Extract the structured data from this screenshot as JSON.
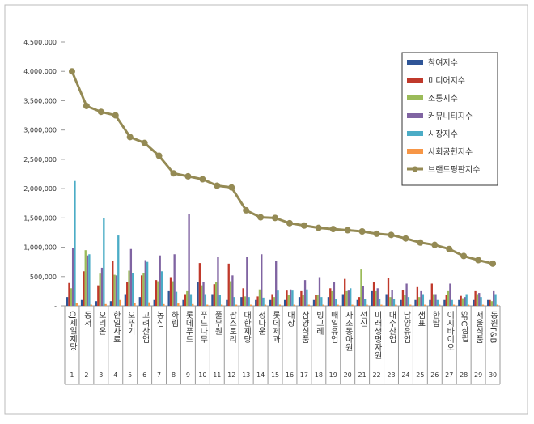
{
  "chart_data": {
    "type": "bar_line",
    "categories": [
      "CJ제일제당",
      "동서",
      "오리온",
      "한일사료",
      "오뚜기",
      "고려산업",
      "농심",
      "하림",
      "롯데푸드",
      "푸드나무",
      "풀무원",
      "팜스토리",
      "대한제당",
      "정다운",
      "롯데제과",
      "대상",
      "삼양식품",
      "빙그레",
      "매일유업",
      "사조동아원",
      "선진",
      "미래생명자원",
      "대주산업",
      "남양유업",
      "샘표",
      "한탑",
      "이지바이오",
      "SPC삼립",
      "서울식품",
      "동원F&B"
    ],
    "category_numbers": [
      1,
      2,
      3,
      4,
      5,
      6,
      7,
      8,
      9,
      10,
      11,
      12,
      13,
      14,
      15,
      16,
      17,
      18,
      19,
      20,
      21,
      22,
      23,
      24,
      25,
      26,
      27,
      28,
      29,
      30
    ],
    "ylim": [
      0,
      4500000
    ],
    "yticks": [
      {
        "value": 0,
        "label": "-"
      },
      {
        "value": 500000,
        "label": "500,000"
      },
      {
        "value": 1000000,
        "label": "1,000,000"
      },
      {
        "value": 1500000,
        "label": "1,500,000"
      },
      {
        "value": 2000000,
        "label": "2,000,000"
      },
      {
        "value": 2500000,
        "label": "2,500,000"
      },
      {
        "value": 3000000,
        "label": "3,000,000"
      },
      {
        "value": 3500000,
        "label": "3,500,000"
      },
      {
        "value": 4000000,
        "label": "4,000,000"
      },
      {
        "value": 4500000,
        "label": "4,500,000"
      }
    ],
    "legend": "upper right",
    "series": [
      {
        "name": "참여지수",
        "kind": "bar",
        "color": "#2f5597",
        "values": [
          150000,
          100000,
          80000,
          80000,
          200000,
          150000,
          100000,
          250000,
          100000,
          400000,
          200000,
          100000,
          150000,
          100000,
          100000,
          100000,
          150000,
          100000,
          150000,
          200000,
          100000,
          250000,
          200000,
          100000,
          100000,
          100000,
          100000,
          100000,
          100000,
          100000
        ]
      },
      {
        "name": "미디어지수",
        "kind": "bar",
        "color": "#c0392b",
        "values": [
          390000,
          590000,
          350000,
          770000,
          400000,
          520000,
          440000,
          490000,
          200000,
          730000,
          370000,
          720000,
          300000,
          160000,
          200000,
          260000,
          250000,
          180000,
          300000,
          460000,
          150000,
          400000,
          480000,
          270000,
          320000,
          380000,
          180000,
          170000,
          250000,
          100000
        ]
      },
      {
        "name": "소통지수",
        "kind": "bar",
        "color": "#9bbb59",
        "values": [
          300000,
          950000,
          550000,
          530000,
          600000,
          560000,
          420000,
          420000,
          250000,
          350000,
          400000,
          420000,
          160000,
          280000,
          150000,
          180000,
          190000,
          190000,
          250000,
          250000,
          620000,
          250000,
          150000,
          190000,
          150000,
          200000,
          250000,
          130000,
          200000,
          80000
        ]
      },
      {
        "name": "커뮤니티지수",
        "kind": "bar",
        "color": "#8064a2",
        "values": [
          990000,
          860000,
          650000,
          520000,
          970000,
          780000,
          860000,
          880000,
          1560000,
          410000,
          840000,
          520000,
          840000,
          880000,
          770000,
          280000,
          440000,
          490000,
          400000,
          260000,
          340000,
          300000,
          270000,
          380000,
          250000,
          200000,
          380000,
          150000,
          220000,
          250000
        ]
      },
      {
        "name": "시장지수",
        "kind": "bar",
        "color": "#4bacc6",
        "values": [
          2130000,
          880000,
          1500000,
          1200000,
          560000,
          750000,
          590000,
          240000,
          200000,
          200000,
          180000,
          150000,
          150000,
          140000,
          260000,
          260000,
          280000,
          150000,
          120000,
          300000,
          120000,
          120000,
          110000,
          150000,
          200000,
          100000,
          100000,
          200000,
          150000,
          200000
        ]
      },
      {
        "name": "사회공헌지수",
        "kind": "bar",
        "color": "#f79646",
        "values": [
          50000,
          20000,
          30000,
          100000,
          50000,
          60000,
          30000,
          40000,
          30000,
          20000,
          20000,
          20000,
          20000,
          20000,
          20000,
          20000,
          20000,
          20000,
          20000,
          20000,
          20000,
          20000,
          20000,
          20000,
          20000,
          20000,
          20000,
          20000,
          20000,
          20000
        ]
      },
      {
        "name": "브랜드평판지수",
        "kind": "line",
        "color": "#948a54",
        "values": [
          4000000,
          3410000,
          3310000,
          3250000,
          2880000,
          2780000,
          2560000,
          2260000,
          2210000,
          2160000,
          2050000,
          2020000,
          1630000,
          1510000,
          1500000,
          1410000,
          1370000,
          1330000,
          1310000,
          1290000,
          1270000,
          1230000,
          1210000,
          1150000,
          1080000,
          1040000,
          970000,
          850000,
          780000,
          720000
        ]
      }
    ]
  }
}
